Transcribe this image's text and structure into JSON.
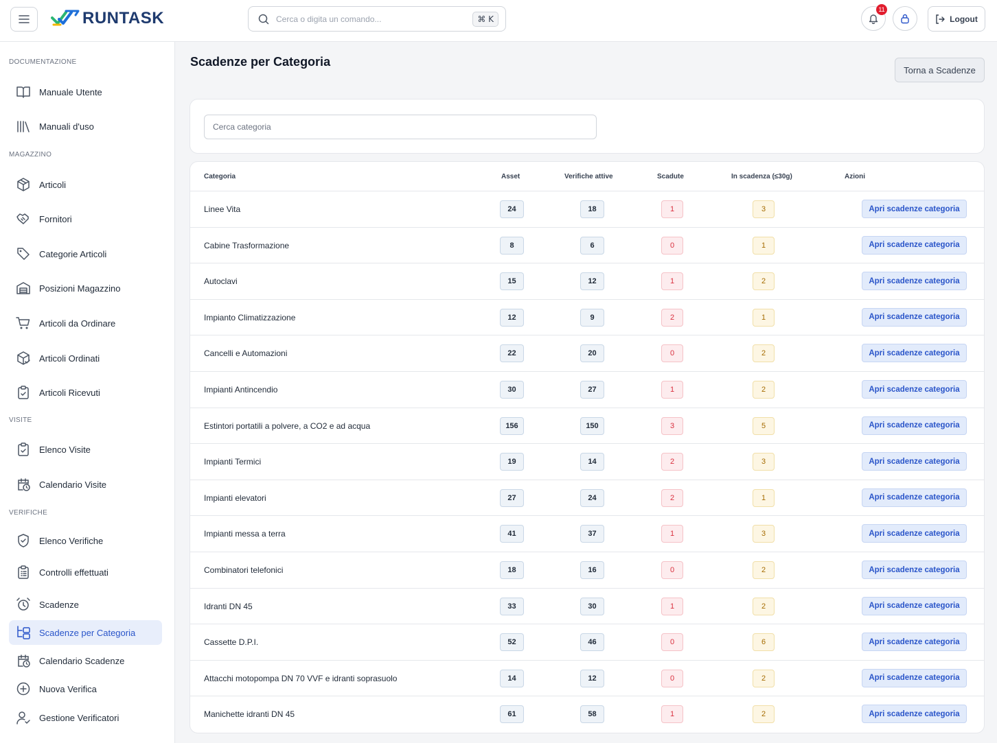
{
  "header": {
    "brand": "RUNTASK",
    "search_placeholder": "Cerca o digita un comando...",
    "shortcut": "⌘ K",
    "notifications_count": "11",
    "logout_label": "Logout"
  },
  "sidebar": {
    "sections": [
      {
        "label": "DOCUMENTAZIONE",
        "items": [
          {
            "label": "Manuale Utente",
            "icon": "book-open-icon"
          },
          {
            "label": "Manuali d'uso",
            "icon": "library-icon"
          }
        ]
      },
      {
        "label": "MAGAZZINO",
        "items": [
          {
            "label": "Articoli",
            "icon": "package-icon"
          },
          {
            "label": "Fornitori",
            "icon": "handshake-icon"
          },
          {
            "label": "Categorie Articoli",
            "icon": "tag-icon"
          },
          {
            "label": "Posizioni Magazzino",
            "icon": "warehouse-icon"
          },
          {
            "label": "Articoli da Ordinare",
            "icon": "cart-icon"
          },
          {
            "label": "Articoli Ordinati",
            "icon": "package-check-icon"
          },
          {
            "label": "Articoli Ricevuti",
            "icon": "clipboard-check-icon"
          }
        ]
      },
      {
        "label": "VISITE",
        "items": [
          {
            "label": "Elenco Visite",
            "icon": "clipboard-check-icon"
          },
          {
            "label": "Calendario Visite",
            "icon": "calendar-clock-icon"
          }
        ]
      },
      {
        "label": "VERIFICHE",
        "items": [
          {
            "label": "Elenco Verifiche",
            "icon": "shield-check-icon"
          },
          {
            "label": "Controlli effettuati",
            "icon": "clipboard-list-icon"
          },
          {
            "label": "Scadenze",
            "icon": "alarm-clock-icon"
          },
          {
            "label": "Scadenze per Categoria",
            "icon": "folder-tree-icon",
            "active": true
          },
          {
            "label": "Calendario Scadenze",
            "icon": "calendar-clock-icon"
          },
          {
            "label": "Nuova Verifica",
            "icon": "plus-circle-icon"
          },
          {
            "label": "Gestione Verificatori",
            "icon": "user-check-icon"
          }
        ]
      }
    ]
  },
  "main": {
    "title": "Scadenze per Categoria",
    "back_label": "Torna a Scadenze",
    "filter_placeholder": "Cerca categoria",
    "columns": [
      "Categoria",
      "Asset",
      "Verifiche attive",
      "Scadute",
      "In scadenza (≤30g)",
      "Azioni"
    ],
    "action_label": "Apri scadenze categoria",
    "rows": [
      {
        "name": "Linee Vita",
        "asset": "24",
        "verifiche": "18",
        "scadute": "1",
        "in_scadenza": "3"
      },
      {
        "name": "Cabine Trasformazione",
        "asset": "8",
        "verifiche": "6",
        "scadute": "0",
        "in_scadenza": "1"
      },
      {
        "name": "Autoclavi",
        "asset": "15",
        "verifiche": "12",
        "scadute": "1",
        "in_scadenza": "2"
      },
      {
        "name": "Impianto Climatizzazione",
        "asset": "12",
        "verifiche": "9",
        "scadute": "2",
        "in_scadenza": "1"
      },
      {
        "name": "Cancelli e Automazioni",
        "asset": "22",
        "verifiche": "20",
        "scadute": "0",
        "in_scadenza": "2"
      },
      {
        "name": "Impianti Antincendio",
        "asset": "30",
        "verifiche": "27",
        "scadute": "1",
        "in_scadenza": "2"
      },
      {
        "name": "Estintori portatili a polvere, a CO2 e ad acqua",
        "asset": "156",
        "verifiche": "150",
        "scadute": "3",
        "in_scadenza": "5"
      },
      {
        "name": "Impianti Termici",
        "asset": "19",
        "verifiche": "14",
        "scadute": "2",
        "in_scadenza": "3"
      },
      {
        "name": "Impianti elevatori",
        "asset": "27",
        "verifiche": "24",
        "scadute": "2",
        "in_scadenza": "1"
      },
      {
        "name": "Impianti messa a terra",
        "asset": "41",
        "verifiche": "37",
        "scadute": "1",
        "in_scadenza": "3"
      },
      {
        "name": "Combinatori telefonici",
        "asset": "18",
        "verifiche": "16",
        "scadute": "0",
        "in_scadenza": "2"
      },
      {
        "name": "Idranti DN 45",
        "asset": "33",
        "verifiche": "30",
        "scadute": "1",
        "in_scadenza": "2"
      },
      {
        "name": "Cassette D.P.I.",
        "asset": "52",
        "verifiche": "46",
        "scadute": "0",
        "in_scadenza": "6"
      },
      {
        "name": "Attacchi motopompa DN 70 VVF e idranti soprasuolo",
        "asset": "14",
        "verifiche": "12",
        "scadute": "0",
        "in_scadenza": "2"
      },
      {
        "name": "Manichette idranti DN 45",
        "asset": "61",
        "verifiche": "58",
        "scadute": "1",
        "in_scadenza": "2"
      }
    ]
  },
  "colors": {
    "accent": "#2a55c9",
    "danger": "#d9303e",
    "warning": "#a56b00",
    "brand": "#1e3a6e"
  }
}
